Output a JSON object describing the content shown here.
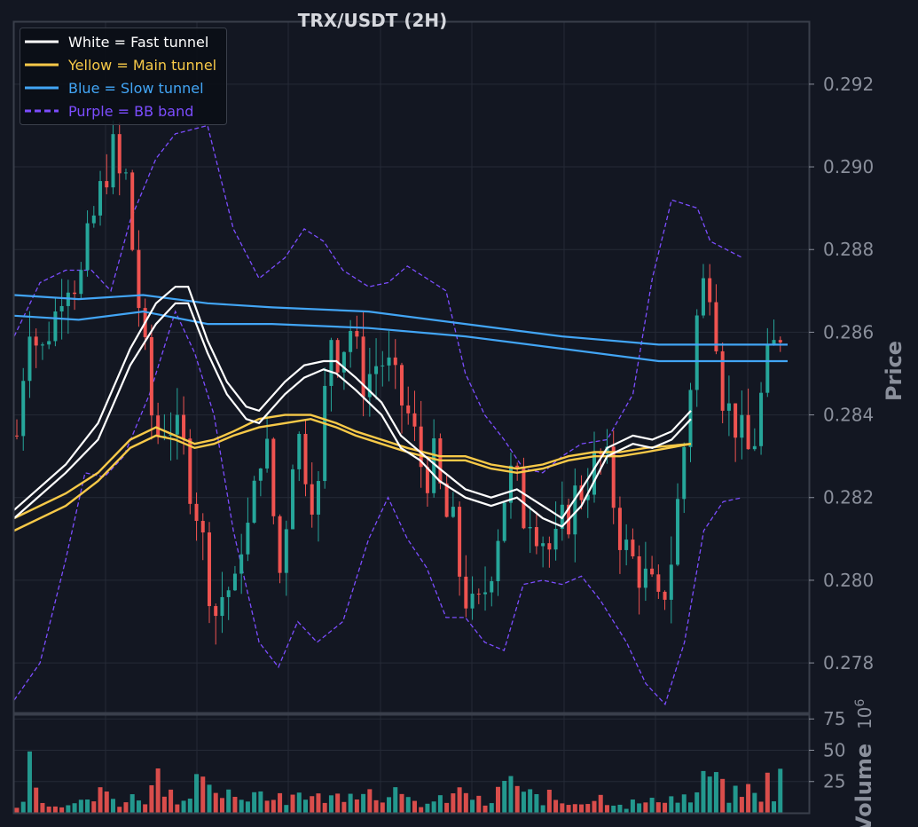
{
  "chart_data": {
    "type": "candlestick",
    "title": "TRX/USDT (2H)",
    "ylabel": "Price",
    "volume_label": "Volume",
    "volume_exponent_text": "10",
    "volume_exponent_power": "6",
    "ylim": [
      0.2768,
      0.2935
    ],
    "y_ticks": [
      0.278,
      0.28,
      0.282,
      0.284,
      0.286,
      0.288,
      0.29,
      0.292
    ],
    "y_tick_labels": [
      "0.278",
      "0.280",
      "0.282",
      "0.284",
      "0.286",
      "0.288",
      "0.290",
      "0.292"
    ],
    "volume_ylim": [
      0,
      78
    ],
    "volume_ticks": [
      25,
      50,
      75
    ],
    "volume_tick_labels": [
      "25",
      "50",
      "75"
    ],
    "legend": [
      {
        "label": "White = Fast tunnel",
        "color": "#ffffff",
        "dashed": false
      },
      {
        "label": "Yellow = Main tunnel",
        "color": "#f7c948",
        "dashed": false
      },
      {
        "label": "Blue = Slow tunnel",
        "color": "#42a5f5",
        "dashed": false
      },
      {
        "label": "Purple = BB band",
        "color": "#7c4dff",
        "dashed": true
      }
    ],
    "colors": {
      "background": "#131722",
      "grid": "#252a36",
      "up": "#26a69a",
      "down": "#ef5350",
      "fast": "#ffffff",
      "main": "#f7c948",
      "slow": "#42a5f5",
      "bb": "#7c4dff"
    },
    "bar_count": 120,
    "close_path": [
      [
        0,
        0.2835
      ],
      [
        5,
        0.2865
      ],
      [
        8,
        0.2858
      ],
      [
        11,
        0.2855
      ],
      [
        14,
        0.2862
      ],
      [
        17,
        0.2865
      ],
      [
        20,
        0.2875
      ],
      [
        24,
        0.2873
      ],
      [
        28,
        0.2873
      ],
      [
        31,
        0.2885
      ],
      [
        34,
        0.289
      ],
      [
        40,
        0.2905
      ],
      [
        44,
        0.2896
      ],
      [
        46,
        0.2898
      ],
      [
        48,
        0.2885
      ],
      [
        50,
        0.2875
      ],
      [
        52,
        0.2865
      ],
      [
        55,
        0.285
      ],
      [
        57,
        0.284
      ],
      [
        60,
        0.2835
      ],
      [
        64,
        0.284
      ],
      [
        67,
        0.2835
      ],
      [
        70,
        0.2833
      ],
      [
        73,
        0.2825
      ],
      [
        76,
        0.2818
      ],
      [
        79,
        0.2808
      ],
      [
        82,
        0.2798
      ],
      [
        85,
        0.279
      ],
      [
        88,
        0.28
      ],
      [
        92,
        0.2795
      ],
      [
        96,
        0.2815
      ],
      [
        99,
        0.281
      ],
      [
        102,
        0.283
      ],
      [
        105,
        0.2835
      ],
      [
        108,
        0.282
      ],
      [
        111,
        0.28
      ],
      [
        114,
        0.2815
      ],
      [
        118,
        0.2838
      ],
      [
        121,
        0.283
      ],
      [
        124,
        0.2825
      ],
      [
        127,
        0.2815
      ],
      [
        130,
        0.2842
      ],
      [
        133,
        0.286
      ],
      [
        136,
        0.2855
      ],
      [
        139,
        0.2858
      ],
      [
        142,
        0.2862
      ],
      [
        145,
        0.285
      ],
      [
        148,
        0.2848
      ],
      [
        151,
        0.2852
      ],
      [
        155,
        0.2853
      ],
      [
        158,
        0.285
      ],
      [
        161,
        0.2845
      ],
      [
        164,
        0.2842
      ],
      [
        167,
        0.2838
      ],
      [
        170,
        0.283
      ],
      [
        173,
        0.2825
      ],
      [
        176,
        0.283
      ],
      [
        179,
        0.2822
      ],
      [
        182,
        0.2815
      ],
      [
        185,
        0.2812
      ],
      [
        188,
        0.28
      ],
      [
        191,
        0.2795
      ],
      [
        194,
        0.279
      ],
      [
        197,
        0.2795
      ],
      [
        200,
        0.2802
      ],
      [
        203,
        0.281
      ],
      [
        206,
        0.282
      ],
      [
        209,
        0.2825
      ],
      [
        212,
        0.2822
      ],
      [
        215,
        0.2815
      ],
      [
        218,
        0.2818
      ],
      [
        221,
        0.2812
      ],
      [
        224,
        0.281
      ],
      [
        227,
        0.2805
      ],
      [
        230,
        0.2812
      ],
      [
        233,
        0.2815
      ],
      [
        236,
        0.282
      ],
      [
        239,
        0.2822
      ],
      [
        242,
        0.2825
      ],
      [
        245,
        0.2828
      ],
      [
        248,
        0.283
      ],
      [
        251,
        0.2825
      ],
      [
        254,
        0.2815
      ],
      [
        257,
        0.2808
      ],
      [
        260,
        0.2805
      ],
      [
        263,
        0.2803
      ],
      [
        266,
        0.28
      ],
      [
        269,
        0.2797
      ],
      [
        272,
        0.2792
      ],
      [
        275,
        0.28
      ],
      [
        278,
        0.2808
      ],
      [
        281,
        0.2825
      ],
      [
        284,
        0.284
      ],
      [
        287,
        0.286
      ],
      [
        290,
        0.287
      ],
      [
        293,
        0.2875
      ],
      [
        296,
        0.2862
      ],
      [
        299,
        0.2845
      ],
      [
        302,
        0.284
      ],
      [
        305,
        0.2838
      ],
      [
        308,
        0.2832
      ],
      [
        311,
        0.283
      ],
      [
        314,
        0.284
      ],
      [
        317,
        0.285
      ],
      [
        320,
        0.2855
      ],
      [
        323,
        0.286
      ],
      [
        326,
        0.2866
      ]
    ],
    "volume_path": [
      [
        0,
        8
      ],
      [
        3,
        10
      ],
      [
        6,
        63
      ],
      [
        9,
        28
      ],
      [
        12,
        7
      ],
      [
        15,
        10
      ],
      [
        18,
        8
      ],
      [
        21,
        8
      ],
      [
        24,
        9
      ],
      [
        27,
        8
      ],
      [
        30,
        14
      ],
      [
        33,
        10
      ],
      [
        36,
        20
      ],
      [
        40,
        14
      ],
      [
        44,
        8
      ],
      [
        48,
        12
      ],
      [
        52,
        16
      ],
      [
        56,
        10
      ],
      [
        60,
        46
      ],
      [
        64,
        18
      ],
      [
        68,
        14
      ],
      [
        72,
        10
      ],
      [
        75,
        42
      ],
      [
        78,
        28
      ],
      [
        81,
        18
      ],
      [
        84,
        12
      ],
      [
        88,
        18
      ],
      [
        92,
        10
      ],
      [
        96,
        14
      ],
      [
        100,
        16
      ],
      [
        104,
        24
      ],
      [
        108,
        12
      ],
      [
        112,
        18
      ],
      [
        116,
        10
      ],
      [
        119,
        26
      ],
      [
        122,
        16
      ],
      [
        126,
        12
      ],
      [
        130,
        14
      ],
      [
        134,
        12
      ],
      [
        138,
        18
      ],
      [
        142,
        22
      ],
      [
        146,
        24
      ],
      [
        150,
        18
      ],
      [
        154,
        12
      ],
      [
        158,
        28
      ],
      [
        162,
        12
      ],
      [
        166,
        10
      ],
      [
        170,
        8
      ],
      [
        174,
        8
      ],
      [
        178,
        10
      ],
      [
        182,
        12
      ],
      [
        186,
        16
      ],
      [
        190,
        20
      ],
      [
        194,
        12
      ],
      [
        198,
        8
      ],
      [
        202,
        6
      ],
      [
        206,
        34
      ],
      [
        210,
        30
      ],
      [
        214,
        14
      ],
      [
        218,
        16
      ],
      [
        222,
        12
      ],
      [
        226,
        14
      ],
      [
        230,
        10
      ],
      [
        234,
        8
      ],
      [
        238,
        12
      ],
      [
        242,
        10
      ],
      [
        246,
        14
      ],
      [
        250,
        12
      ],
      [
        254,
        10
      ],
      [
        258,
        6
      ],
      [
        262,
        10
      ],
      [
        266,
        8
      ],
      [
        270,
        10
      ],
      [
        274,
        16
      ],
      [
        278,
        12
      ],
      [
        282,
        14
      ],
      [
        286,
        10
      ],
      [
        290,
        24
      ],
      [
        294,
        38
      ],
      [
        298,
        22
      ],
      [
        302,
        14
      ],
      [
        306,
        18
      ],
      [
        310,
        20
      ],
      [
        314,
        12
      ],
      [
        318,
        28
      ],
      [
        322,
        10
      ],
      [
        326,
        72
      ]
    ],
    "fast_upper": [
      [
        0,
        0.2817
      ],
      [
        8,
        0.2828
      ],
      [
        13,
        0.2838
      ],
      [
        18,
        0.2856
      ],
      [
        22,
        0.2867
      ],
      [
        25,
        0.2871
      ],
      [
        27,
        0.2871
      ],
      [
        30,
        0.2858
      ],
      [
        33,
        0.2848
      ],
      [
        36,
        0.2842
      ],
      [
        38,
        0.2841
      ],
      [
        42,
        0.2848
      ],
      [
        45,
        0.2852
      ],
      [
        48,
        0.2853
      ],
      [
        50,
        0.2853
      ],
      [
        53,
        0.2849
      ],
      [
        57,
        0.2843
      ],
      [
        60,
        0.2835
      ],
      [
        63,
        0.2831
      ],
      [
        66,
        0.2827
      ],
      [
        70,
        0.2822
      ],
      [
        74,
        0.282
      ],
      [
        78,
        0.2822
      ],
      [
        82,
        0.2818
      ],
      [
        85,
        0.2815
      ],
      [
        88,
        0.2822
      ],
      [
        92,
        0.2832
      ],
      [
        96,
        0.2835
      ],
      [
        99,
        0.2834
      ],
      [
        102,
        0.2836
      ],
      [
        105,
        0.2841
      ]
    ],
    "fast_lower": [
      [
        0,
        0.2815
      ],
      [
        8,
        0.2826
      ],
      [
        13,
        0.2834
      ],
      [
        18,
        0.2852
      ],
      [
        22,
        0.2862
      ],
      [
        25,
        0.2867
      ],
      [
        27,
        0.2867
      ],
      [
        30,
        0.2855
      ],
      [
        33,
        0.2845
      ],
      [
        36,
        0.2839
      ],
      [
        38,
        0.2838
      ],
      [
        42,
        0.2845
      ],
      [
        45,
        0.2849
      ],
      [
        48,
        0.2851
      ],
      [
        50,
        0.285
      ],
      [
        53,
        0.2846
      ],
      [
        57,
        0.284
      ],
      [
        60,
        0.2832
      ],
      [
        63,
        0.2829
      ],
      [
        66,
        0.2824
      ],
      [
        70,
        0.282
      ],
      [
        74,
        0.2818
      ],
      [
        78,
        0.282
      ],
      [
        82,
        0.2815
      ],
      [
        85,
        0.2813
      ],
      [
        88,
        0.2818
      ],
      [
        92,
        0.283
      ],
      [
        96,
        0.2833
      ],
      [
        99,
        0.2832
      ],
      [
        102,
        0.2834
      ],
      [
        105,
        0.2839
      ]
    ],
    "main_upper": [
      [
        0,
        0.2815
      ],
      [
        8,
        0.2821
      ],
      [
        13,
        0.2826
      ],
      [
        18,
        0.2834
      ],
      [
        22,
        0.2837
      ],
      [
        25,
        0.2835
      ],
      [
        28,
        0.2833
      ],
      [
        31,
        0.2834
      ],
      [
        34,
        0.2836
      ],
      [
        38,
        0.2839
      ],
      [
        42,
        0.284
      ],
      [
        46,
        0.284
      ],
      [
        50,
        0.2838
      ],
      [
        53,
        0.2836
      ],
      [
        57,
        0.2834
      ],
      [
        61,
        0.2832
      ],
      [
        66,
        0.283
      ],
      [
        70,
        0.283
      ],
      [
        74,
        0.2828
      ],
      [
        78,
        0.2827
      ],
      [
        82,
        0.2828
      ],
      [
        86,
        0.283
      ],
      [
        90,
        0.2831
      ],
      [
        94,
        0.2831
      ],
      [
        98,
        0.2832
      ],
      [
        105,
        0.2833
      ]
    ],
    "main_lower": [
      [
        0,
        0.2812
      ],
      [
        8,
        0.2818
      ],
      [
        13,
        0.2824
      ],
      [
        18,
        0.2832
      ],
      [
        22,
        0.2835
      ],
      [
        25,
        0.2834
      ],
      [
        28,
        0.2832
      ],
      [
        31,
        0.2833
      ],
      [
        34,
        0.2835
      ],
      [
        38,
        0.2837
      ],
      [
        42,
        0.2838
      ],
      [
        46,
        0.2839
      ],
      [
        50,
        0.2837
      ],
      [
        53,
        0.2835
      ],
      [
        57,
        0.2833
      ],
      [
        61,
        0.2831
      ],
      [
        66,
        0.2829
      ],
      [
        70,
        0.2829
      ],
      [
        74,
        0.2827
      ],
      [
        78,
        0.2826
      ],
      [
        82,
        0.2827
      ],
      [
        86,
        0.2829
      ],
      [
        90,
        0.283
      ],
      [
        94,
        0.283
      ],
      [
        98,
        0.2831
      ],
      [
        105,
        0.2833
      ]
    ],
    "slow_upper": [
      [
        0,
        0.2869
      ],
      [
        10,
        0.2868
      ],
      [
        20,
        0.2869
      ],
      [
        30,
        0.2867
      ],
      [
        40,
        0.2866
      ],
      [
        55,
        0.2865
      ],
      [
        70,
        0.2862
      ],
      [
        85,
        0.2859
      ],
      [
        100,
        0.2857
      ],
      [
        120,
        0.2857
      ]
    ],
    "slow_lower": [
      [
        0,
        0.2864
      ],
      [
        10,
        0.2863
      ],
      [
        20,
        0.2865
      ],
      [
        30,
        0.2862
      ],
      [
        40,
        0.2862
      ],
      [
        55,
        0.2861
      ],
      [
        70,
        0.2859
      ],
      [
        85,
        0.2856
      ],
      [
        100,
        0.2853
      ],
      [
        120,
        0.2853
      ]
    ],
    "bb_upper": [
      [
        0,
        0.2859
      ],
      [
        4,
        0.2872
      ],
      [
        8,
        0.2875
      ],
      [
        12,
        0.2875
      ],
      [
        15,
        0.287
      ],
      [
        18,
        0.2887
      ],
      [
        22,
        0.2902
      ],
      [
        25,
        0.2908
      ],
      [
        30,
        0.291
      ],
      [
        34,
        0.2885
      ],
      [
        38,
        0.2873
      ],
      [
        42,
        0.2878
      ],
      [
        45,
        0.2885
      ],
      [
        48,
        0.2882
      ],
      [
        51,
        0.2875
      ],
      [
        55,
        0.2871
      ],
      [
        58,
        0.2872
      ],
      [
        61,
        0.2876
      ],
      [
        64,
        0.2873
      ],
      [
        67,
        0.287
      ],
      [
        70,
        0.285
      ],
      [
        73,
        0.284
      ],
      [
        76,
        0.2834
      ],
      [
        79,
        0.2827
      ],
      [
        82,
        0.2826
      ],
      [
        85,
        0.283
      ],
      [
        88,
        0.2833
      ],
      [
        92,
        0.2834
      ],
      [
        96,
        0.2845
      ],
      [
        99,
        0.2873
      ],
      [
        102,
        0.2892
      ],
      [
        106,
        0.289
      ],
      [
        108,
        0.2882
      ],
      [
        113,
        0.2878
      ]
    ],
    "bb_lower": [
      [
        0,
        0.2771
      ],
      [
        4,
        0.278
      ],
      [
        8,
        0.2805
      ],
      [
        11,
        0.2826
      ],
      [
        14,
        0.2825
      ],
      [
        17,
        0.283
      ],
      [
        21,
        0.2845
      ],
      [
        25,
        0.2865
      ],
      [
        28,
        0.2855
      ],
      [
        31,
        0.284
      ],
      [
        34,
        0.2812
      ],
      [
        38,
        0.2785
      ],
      [
        41,
        0.2779
      ],
      [
        44,
        0.279
      ],
      [
        47,
        0.2785
      ],
      [
        51,
        0.279
      ],
      [
        55,
        0.281
      ],
      [
        58,
        0.282
      ],
      [
        61,
        0.281
      ],
      [
        64,
        0.2803
      ],
      [
        67,
        0.2791
      ],
      [
        70,
        0.2791
      ],
      [
        73,
        0.2785
      ],
      [
        76,
        0.2783
      ],
      [
        79,
        0.2799
      ],
      [
        82,
        0.28
      ],
      [
        85,
        0.2799
      ],
      [
        88,
        0.2801
      ],
      [
        91,
        0.2795
      ],
      [
        95,
        0.2785
      ],
      [
        98,
        0.2775
      ],
      [
        101,
        0.277
      ],
      [
        104,
        0.2785
      ],
      [
        107,
        0.2812
      ],
      [
        110,
        0.2819
      ],
      [
        113,
        0.282
      ]
    ]
  }
}
